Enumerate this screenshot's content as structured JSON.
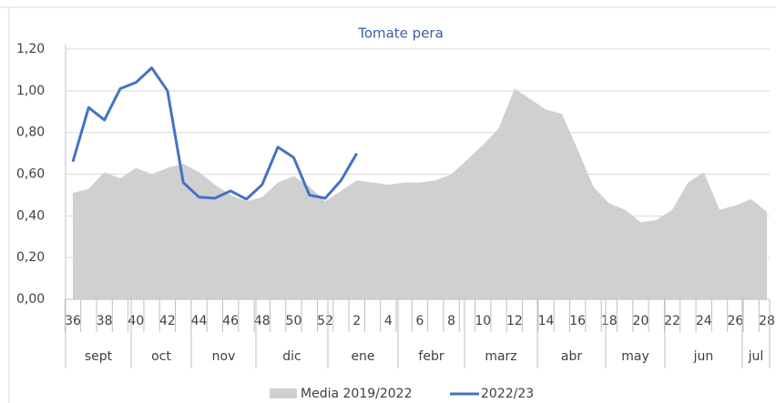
{
  "chart_data": {
    "type": "area-line",
    "title": "Tomate pera",
    "categories": [
      "36",
      null,
      "38",
      null,
      "40",
      null,
      "42",
      null,
      "44",
      null,
      "46",
      null,
      "48",
      null,
      "50",
      null,
      "52",
      null,
      "2",
      null,
      "4",
      null,
      "6",
      null,
      "8",
      null,
      "10",
      null,
      "12",
      null,
      "14",
      null,
      "16",
      null,
      "18",
      null,
      "20",
      null,
      "22",
      null,
      "24",
      null,
      "26",
      null,
      "28"
    ],
    "groups": [
      "sept",
      "oct",
      "nov",
      "dic",
      "ene",
      "febr",
      "marz",
      "abr",
      "may",
      "jun",
      "jul"
    ],
    "series": [
      {
        "name": "Media 2019/2022",
        "type": "area",
        "color": "#d0d0d0",
        "values": [
          0.51,
          0.53,
          0.61,
          0.58,
          0.63,
          0.6,
          0.63,
          0.65,
          0.61,
          0.55,
          0.5,
          0.47,
          0.49,
          0.56,
          0.59,
          0.54,
          0.47,
          0.52,
          0.57,
          0.56,
          0.55,
          0.56,
          0.56,
          0.57,
          0.6,
          0.67,
          0.74,
          0.82,
          1.01,
          0.96,
          0.91,
          0.89,
          0.72,
          0.54,
          0.46,
          0.43,
          0.37,
          0.38,
          0.43,
          0.56,
          0.61,
          0.43,
          0.45,
          0.48,
          0.42
        ]
      },
      {
        "name": "2022/23",
        "type": "line",
        "color": "#4472c4",
        "values": [
          0.66,
          0.92,
          0.86,
          1.01,
          1.04,
          1.11,
          1.0,
          0.56,
          0.49,
          0.485,
          0.52,
          0.48,
          0.55,
          0.73,
          0.68,
          0.5,
          0.485,
          0.57,
          0.7,
          null,
          null,
          null,
          null,
          null,
          null,
          null,
          null,
          null,
          null,
          null,
          null,
          null,
          null,
          null,
          null,
          null,
          null,
          null,
          null,
          null,
          null,
          null,
          null,
          null,
          null
        ]
      }
    ],
    "ylim": [
      0,
      1.2
    ],
    "yticks": [
      {
        "value": 0,
        "label": "0,00"
      },
      {
        "value": 0.2,
        "label": "0,20"
      },
      {
        "value": 0.4,
        "label": "0,40"
      },
      {
        "value": 0.6,
        "label": "0,60"
      },
      {
        "value": 0.8,
        "label": "0,80"
      },
      {
        "value": 1.0,
        "label": "1,00"
      },
      {
        "value": 1.2,
        "label": "1,20"
      }
    ],
    "grid": true,
    "legend": "bottom"
  }
}
